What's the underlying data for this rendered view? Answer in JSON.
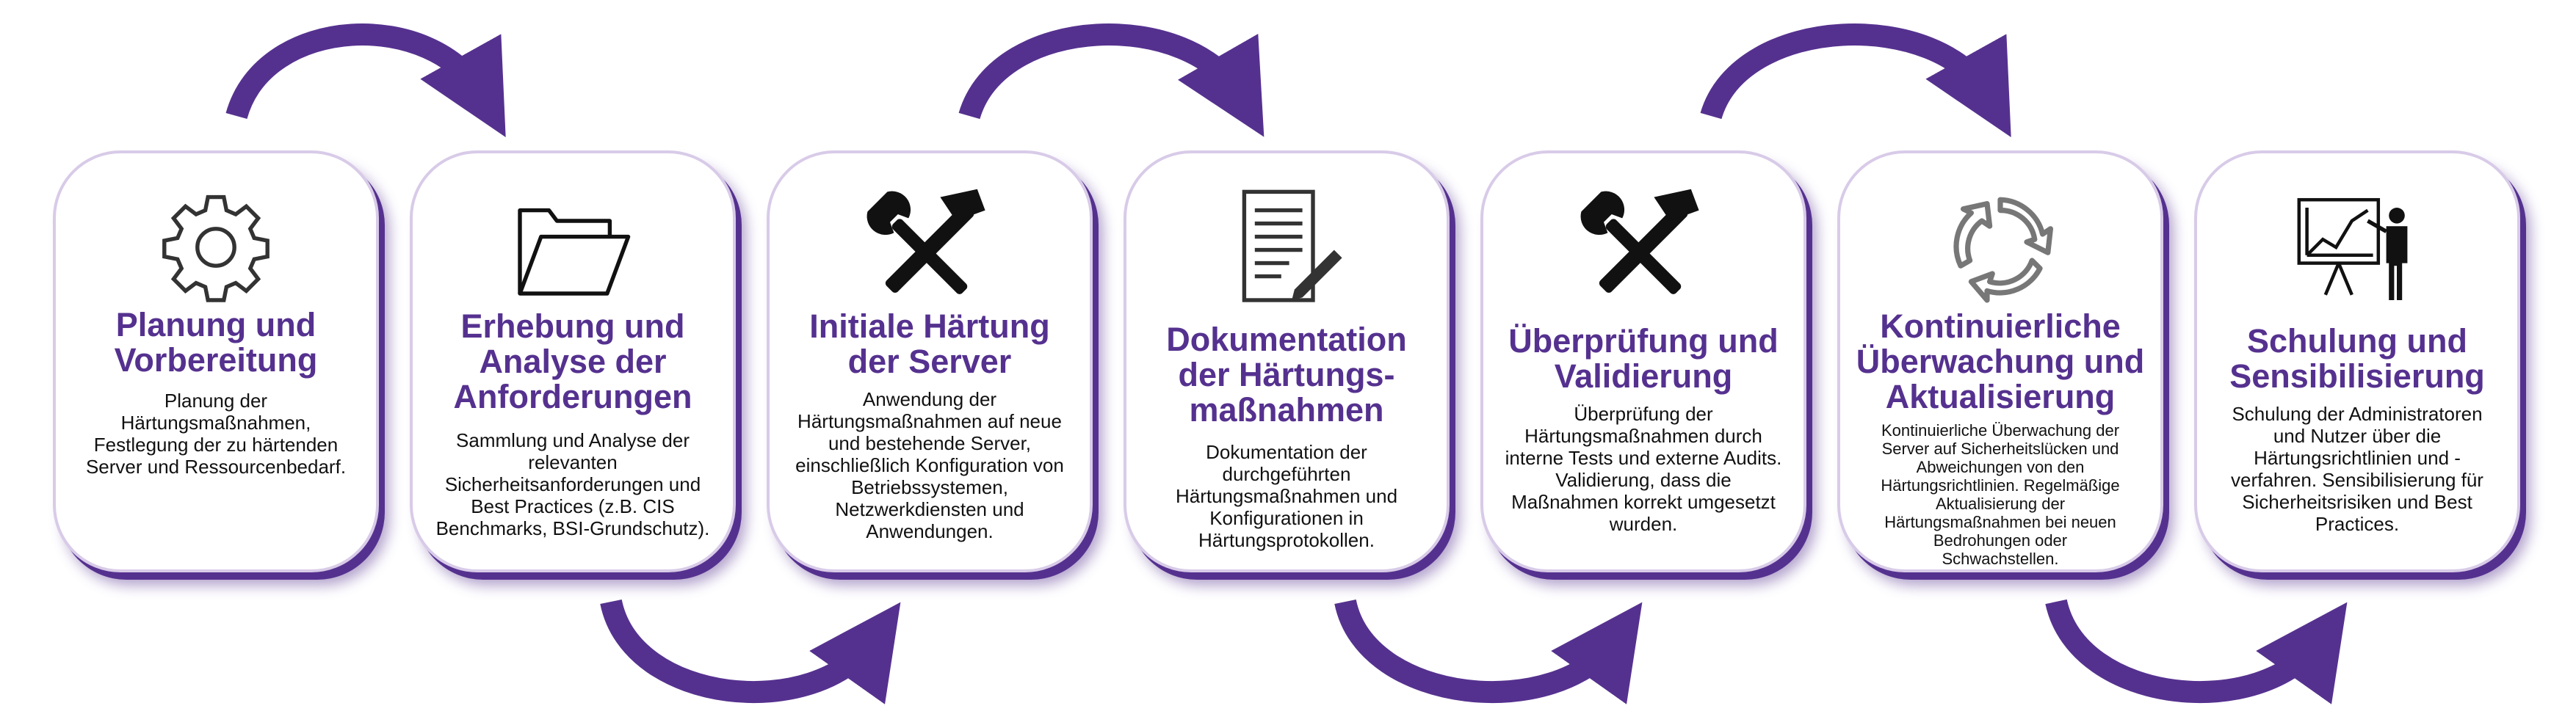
{
  "colors": {
    "accent": "#55318f",
    "text": "#111111",
    "card_border": "#d8cbe8"
  },
  "steps": [
    {
      "icon": "gear-icon",
      "title": "Planung und\nVorbereitung",
      "description": "Planung der\nHärtungsmaßnahmen,\nFestlegung der zu härtenden\nServer und Ressourcenbedarf."
    },
    {
      "icon": "folder-icon",
      "title": "Erhebung und\nAnalyse der\nAnforderungen",
      "description": "Sammlung und Analyse der\nrelevanten\nSicherheitsanforderungen und\nBest Practices (z.B. CIS\nBenchmarks, BSI-Grundschutz)."
    },
    {
      "icon": "tools-icon",
      "title": "Initiale Härtung\nder Server",
      "description": "Anwendung der\nHärtungsmaßnahmen auf neue\nund bestehende Server,\neinschließlich Konfiguration von\nBetriebssystemen,\nNetzwerkdiensten und\nAnwendungen."
    },
    {
      "icon": "document-edit-icon",
      "title": "Dokumentation\nder Härtungs-\nmaßnahmen",
      "description": "Dokumentation der\ndurchgeführten\nHärtungsmaßnahmen und\nKonfigurationen in\nHärtungsprotokollen."
    },
    {
      "icon": "tools-icon",
      "title": "Überprüfung und\nValidierung",
      "description": "Überprüfung der\nHärtungsmaßnahmen durch\ninterne Tests und externe Audits.\nValidierung, dass die\nMaßnahmen korrekt umgesetzt\nwurden."
    },
    {
      "icon": "cycle-arrows-icon",
      "title": "Kontinuierliche\nÜberwachung und\nAktualisierung",
      "description": "Kontinuierliche Überwachung der\nServer auf Sicherheitslücken und\nAbweichungen von den\nHärtungsrichtlinien. Regelmäßige\nAktualisierung der\nHärtungsmaßnahmen bei neuen\nBedrohungen oder\nSchwachstellen."
    },
    {
      "icon": "presentation-icon",
      "title": "Schulung und\nSensibilisierung",
      "description": "Schulung der Administratoren\nund Nutzer über die\nHärtungsrichtlinien und -\nverfahren. Sensibilisierung für\nSicherheitsrisiken und Best\nPractices."
    }
  ]
}
